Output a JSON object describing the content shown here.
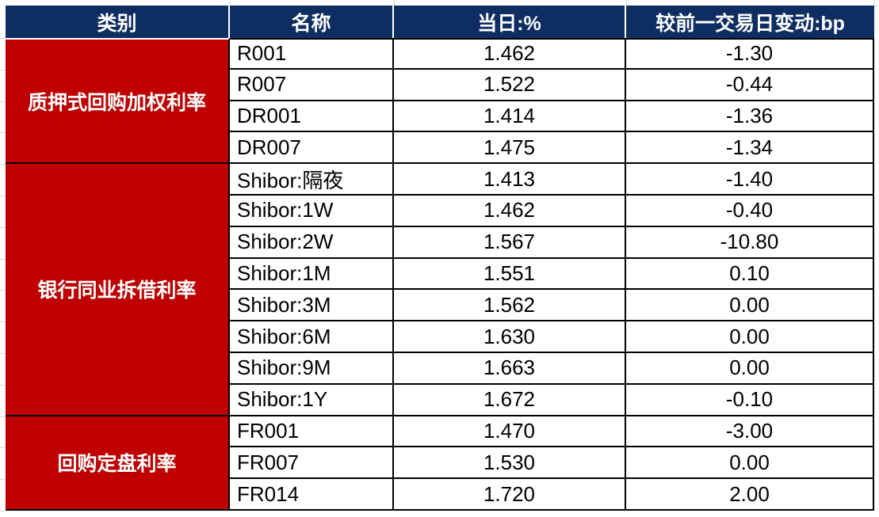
{
  "app": {
    "kind": "spreadsheet-rates-table",
    "title": ""
  },
  "colors": {
    "header_bg": "#0e2d61",
    "header_text": "#ffffff",
    "category_bg": "#c00000",
    "category_text": "#ffffff",
    "cell_bg": "#ffffff",
    "cell_text": "#000000",
    "cell_border": "#000000",
    "gridline_tick": "#d8d8d8"
  },
  "chart_data": {
    "type": "table",
    "title": "",
    "columns": [
      {
        "key": "category",
        "label": "类别"
      },
      {
        "key": "name",
        "label": "名称"
      },
      {
        "key": "value",
        "label": "当日:%"
      },
      {
        "key": "change",
        "label": "较前一交易日变动:bp"
      }
    ],
    "groups": [
      {
        "category": "质押式回购加权利率",
        "rows": [
          {
            "name": "R001",
            "value": "1.462",
            "change": "-1.30"
          },
          {
            "name": "R007",
            "value": "1.522",
            "change": "-0.44"
          },
          {
            "name": "DR001",
            "value": "1.414",
            "change": "-1.36"
          },
          {
            "name": "DR007",
            "value": "1.475",
            "change": "-1.34"
          }
        ]
      },
      {
        "category": "银行同业拆借利率",
        "rows": [
          {
            "name": "Shibor:隔夜",
            "value": "1.413",
            "change": "-1.40"
          },
          {
            "name": "Shibor:1W",
            "value": "1.462",
            "change": "-0.40"
          },
          {
            "name": "Shibor:2W",
            "value": "1.567",
            "change": "-10.80"
          },
          {
            "name": "Shibor:1M",
            "value": "1.551",
            "change": "0.10"
          },
          {
            "name": "Shibor:3M",
            "value": "1.562",
            "change": "0.00"
          },
          {
            "name": "Shibor:6M",
            "value": "1.630",
            "change": "0.00"
          },
          {
            "name": "Shibor:9M",
            "value": "1.663",
            "change": "0.00"
          },
          {
            "name": "Shibor:1Y",
            "value": "1.672",
            "change": "-0.10"
          }
        ]
      },
      {
        "category": "回购定盘利率",
        "rows": [
          {
            "name": "FR001",
            "value": "1.470",
            "change": "-3.00"
          },
          {
            "name": "FR007",
            "value": "1.530",
            "change": "0.00"
          },
          {
            "name": "FR014",
            "value": "1.720",
            "change": "2.00"
          }
        ]
      }
    ]
  }
}
